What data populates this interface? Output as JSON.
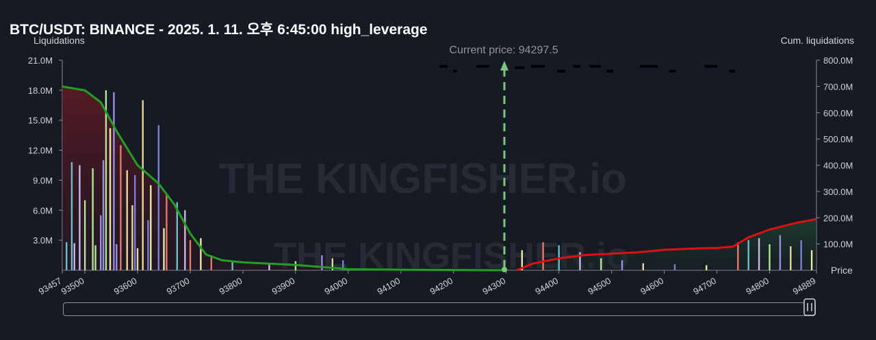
{
  "title": "BTC/USDT: BINANCE - 2025. 1. 11. 오후 6:45:00 high_leverage",
  "current_price_label": "Current price: 94297.5",
  "watermark": "THE KINGFISHER.io",
  "colors": {
    "background": "#161a25",
    "cum_short": "#22a022",
    "cum_long": "#e01010",
    "current_price_line": "#7cc77c"
  },
  "chart_data": {
    "type": "bar",
    "title": "BTC/USDT: BINANCE - 2025. 1. 11. 오후 6:45:00 high_leverage",
    "xlabel": "Price",
    "ylabel_left": "Liquidations",
    "ylabel_right": "Cum. liquidations",
    "x_ticks": [
      "93457",
      "93500",
      "93600",
      "93700",
      "93800",
      "93900",
      "94000",
      "94100",
      "94200",
      "94300",
      "94400",
      "94500",
      "94600",
      "94700",
      "94800",
      "94889"
    ],
    "y_left_ticks": [
      "3.0M",
      "6.0M",
      "9.0M",
      "12.0M",
      "15.0M",
      "18.0M",
      "21.0M"
    ],
    "y_right_ticks": [
      "100.0M",
      "200.0M",
      "300.0M",
      "400.0M",
      "500.0M",
      "600.0M",
      "700.0M",
      "800.0M"
    ],
    "xlim": [
      93457,
      94889
    ],
    "ylim_left": [
      0,
      21000000
    ],
    "ylim_right": [
      0,
      800000000
    ],
    "current_price": 94297.5,
    "legend": "none",
    "grid": false,
    "series": [
      {
        "name": "Cum. liquidations",
        "side": "short",
        "axis": "right",
        "points": [
          [
            93457,
            700000000
          ],
          [
            93500,
            685000000
          ],
          [
            93530,
            640000000
          ],
          [
            93560,
            530000000
          ],
          [
            93600,
            400000000
          ],
          [
            93640,
            330000000
          ],
          [
            93670,
            250000000
          ],
          [
            93700,
            140000000
          ],
          [
            93730,
            60000000
          ],
          [
            93760,
            38000000
          ],
          [
            93800,
            30000000
          ],
          [
            93900,
            20000000
          ],
          [
            94000,
            4000000
          ],
          [
            94100,
            2000000
          ],
          [
            94200,
            1000000
          ],
          [
            94297.5,
            0
          ]
        ]
      },
      {
        "name": "Cum. liquidations",
        "side": "long",
        "axis": "right",
        "points": [
          [
            94320,
            0
          ],
          [
            94350,
            25000000
          ],
          [
            94400,
            45000000
          ],
          [
            94450,
            58000000
          ],
          [
            94500,
            63000000
          ],
          [
            94550,
            68000000
          ],
          [
            94600,
            78000000
          ],
          [
            94650,
            82000000
          ],
          [
            94700,
            85000000
          ],
          [
            94730,
            90000000
          ],
          [
            94760,
            125000000
          ],
          [
            94800,
            155000000
          ],
          [
            94850,
            180000000
          ],
          [
            94889,
            195000000
          ]
        ]
      },
      {
        "name": "Liquidations",
        "axis": "left",
        "points": [
          [
            93540,
            18000000
          ],
          [
            93555,
            17800000
          ],
          [
            93610,
            17000000
          ],
          [
            93640,
            14500000
          ],
          [
            93548,
            14200000
          ],
          [
            93568,
            12500000
          ],
          [
            93475,
            10800000
          ],
          [
            93490,
            10500000
          ],
          [
            93515,
            10200000
          ],
          [
            93535,
            11000000
          ],
          [
            93580,
            10000000
          ],
          [
            93595,
            9500000
          ],
          [
            93625,
            8500000
          ],
          [
            93655,
            7500000
          ],
          [
            93675,
            6800000
          ],
          [
            93690,
            6000000
          ],
          [
            93500,
            7000000
          ],
          [
            93530,
            5500000
          ],
          [
            93590,
            6500000
          ],
          [
            93620,
            5000000
          ],
          [
            93650,
            4200000
          ],
          [
            93700,
            3000000
          ],
          [
            93465,
            2800000
          ],
          [
            93480,
            2700000
          ],
          [
            93520,
            2500000
          ],
          [
            93560,
            2600000
          ],
          [
            93600,
            2200000
          ],
          [
            93640,
            2400000
          ],
          [
            93720,
            3200000
          ],
          [
            93740,
            1500000
          ],
          [
            93780,
            800000
          ],
          [
            93850,
            700000
          ],
          [
            93900,
            900000
          ],
          [
            93950,
            1500000
          ],
          [
            93970,
            1200000
          ],
          [
            93990,
            1000000
          ],
          [
            94330,
            2000000
          ],
          [
            94370,
            2800000
          ],
          [
            94400,
            2500000
          ],
          [
            94440,
            1800000
          ],
          [
            94480,
            1200000
          ],
          [
            94520,
            1000000
          ],
          [
            94560,
            700000
          ],
          [
            94620,
            600000
          ],
          [
            94680,
            500000
          ],
          [
            94740,
            2800000
          ],
          [
            94760,
            3000000
          ],
          [
            94780,
            3200000
          ],
          [
            94800,
            2600000
          ],
          [
            94820,
            3500000
          ],
          [
            94840,
            2400000
          ],
          [
            94860,
            3000000
          ],
          [
            94880,
            2000000
          ]
        ]
      }
    ]
  }
}
